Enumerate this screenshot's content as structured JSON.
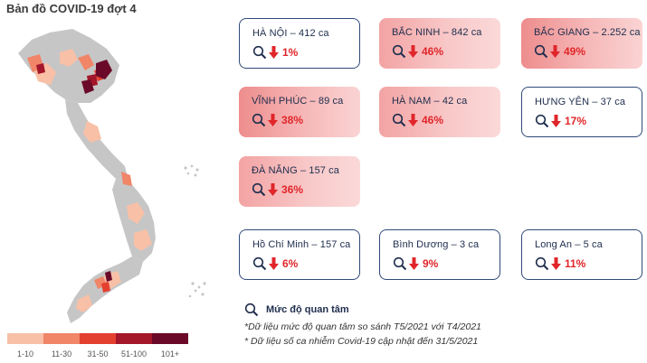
{
  "title": "Bản đồ COVID-19 đợt 4",
  "colors": {
    "scale": [
      "#f8c0a6",
      "#f08568",
      "#e44030",
      "#a4162a",
      "#6b0a28"
    ],
    "no_data": "#c6c6c6",
    "card_border": "#2f4a78",
    "down": "#e0262a"
  },
  "legend": [
    "1-10",
    "11-30",
    "31-50",
    "51-100",
    "101+"
  ],
  "cards": [
    {
      "name": "HÀ NỘI – 412 ca",
      "pct": "1%",
      "style": "plain"
    },
    {
      "name": "BẮC NINH – 842 ca",
      "pct": "46%",
      "style": "hot"
    },
    {
      "name": "BẮC GIANG – 2.252 ca",
      "pct": "49%",
      "style": "hot"
    },
    {
      "name": "VĨNH PHÚC – 89 ca",
      "pct": "38%",
      "style": "hot"
    },
    {
      "name": "HÀ NAM – 42 ca",
      "pct": "46%",
      "style": "hot"
    },
    {
      "name": "HƯNG YÊN – 37 ca",
      "pct": "17%",
      "style": "plain"
    },
    {
      "name": "ĐÀ NẴNG – 157 ca",
      "pct": "36%",
      "style": "hot"
    },
    {
      "name": "Hồ Chí Minh – 157 ca",
      "pct": "6%",
      "style": "plain"
    },
    {
      "name": "Bình Dương – 3 ca",
      "pct": "9%",
      "style": "plain"
    },
    {
      "name": "Long An – 5 ca",
      "pct": "11%",
      "style": "plain"
    }
  ],
  "notes": {
    "heading": "Mức độ quan tâm",
    "line1": "*Dữ liệu mức độ quan tâm so sánh T5/2021 với T4/2021",
    "line2": "* Dữ liệu số ca nhiễm Covid-19 cập nhật đến 31/5/2021"
  }
}
